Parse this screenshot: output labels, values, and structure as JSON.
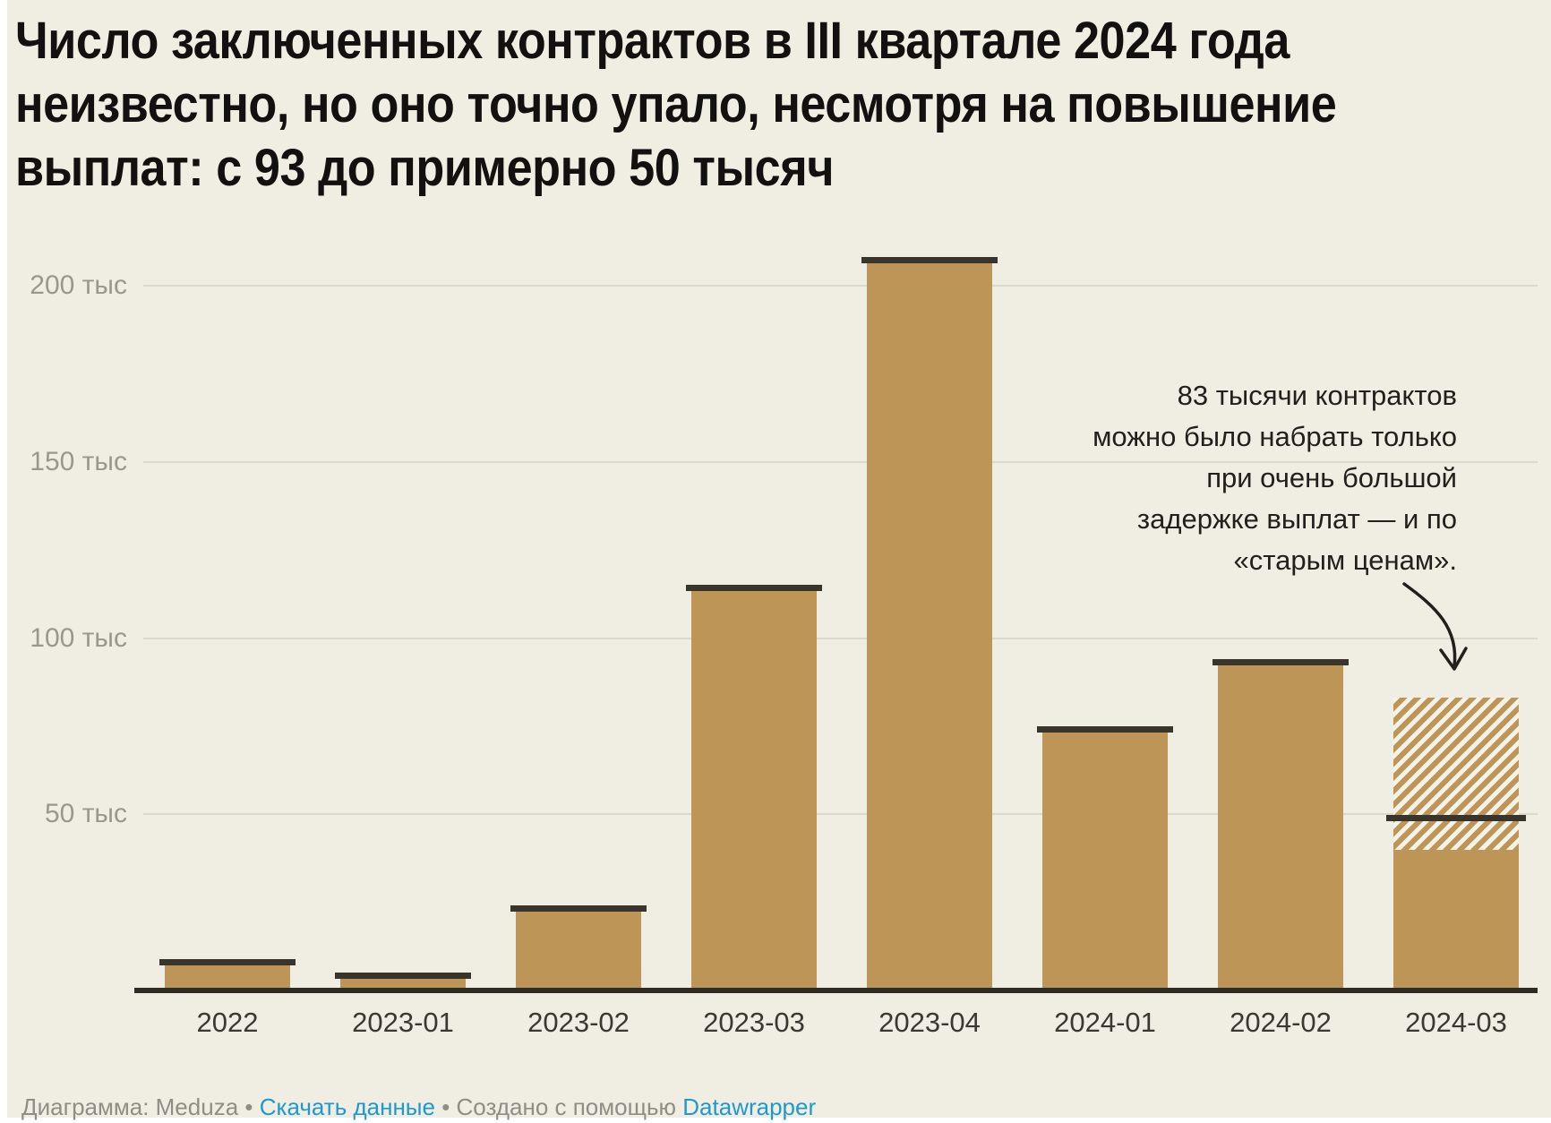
{
  "chart_data": {
    "type": "bar",
    "title": "Число заключенных контрактов в III квартале 2024 года неизвестно, но оно точно упало, несмотря на повышение выплат: с 93 до примерно 50 тысяч",
    "title_lines": "Число заключенных контрактов в III квартале 2024 года\nнеизвестно, но оно точно упало, несмотря на повышение\nвыплат: с 93 до примерно 50 тысяч",
    "unit": "тыс (тысяч контрактов)",
    "categories": [
      "2022",
      "2023-01",
      "2023-02",
      "2023-03",
      "2023-04",
      "2024-01",
      "2024-02",
      "2024-03"
    ],
    "values_thousands": [
      8,
      4,
      23,
      114,
      207,
      74,
      93,
      null
    ],
    "special_bar_2024_03": {
      "category": "2024-03",
      "solid_thousands": 40,
      "hatched_top_thousands": 83,
      "marker_line_thousands": 49
    },
    "y_ticks": [
      {
        "value": 50,
        "label": "50 тыс"
      },
      {
        "value": 100,
        "label": "100 тыс"
      },
      {
        "value": 150,
        "label": "150 тыс"
      },
      {
        "value": 200,
        "label": "200 тыс"
      }
    ],
    "ylim": [
      0,
      210
    ],
    "grid": "horizontal",
    "legend": "none",
    "annotation": "83 тысячи контрактов\nможно было набрать только\nпри очень большой\nзадержке выплат — и по\n«старым ценам»."
  },
  "footer": {
    "attribution": "Диаграмма: Meduza",
    "separator": "•",
    "download_link": "Скачать данные",
    "created_with": "Создано с помощью",
    "tool_link": "Datawrapper"
  },
  "colors": {
    "background": "#f0ede2",
    "bar": "#bd9557",
    "bar_cap": "#39342c",
    "gridline": "#dcd8cc",
    "axis_line": "#2f2b25",
    "hatch_gap": "#f5f2e8",
    "link": "#1e99cf",
    "footer_text": "#908d85",
    "y_label": "#9b978e",
    "x_label": "#3b3731",
    "title_color": "#131110",
    "annotation_color": "#21201d"
  }
}
